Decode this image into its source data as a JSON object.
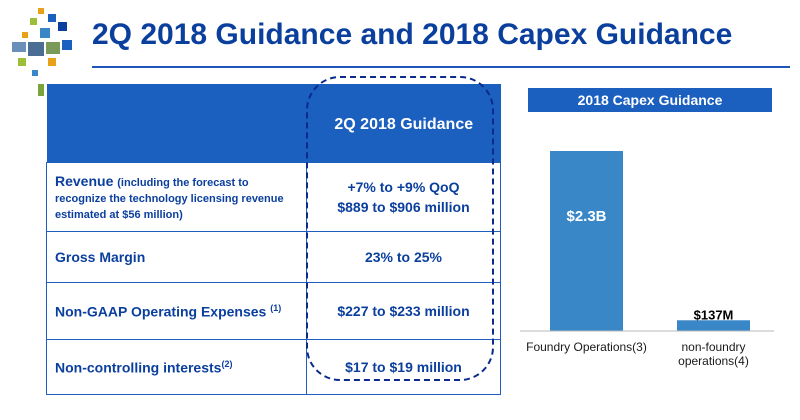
{
  "title": "2Q 2018 Guidance and 2018 Capex Guidance",
  "colors": {
    "accent": "#1b5fbf",
    "title": "#0b3f9e",
    "bar": "#3a87c8",
    "dashed_border": "#0b2a8a"
  },
  "guidance_table": {
    "header": {
      "label": "",
      "value": "2Q 2018 Guidance"
    },
    "rows": [
      {
        "label": "Revenue",
        "label_note": "(including the forecast to recognize the technology licensing revenue estimated at $56 million)",
        "value_line1": "+7% to +9% QoQ",
        "value_line2": "$889 to $906 million"
      },
      {
        "label": "Gross Margin",
        "value": "23% to 25%"
      },
      {
        "label": "Non-GAAP Operating Expenses",
        "footnote": "(1)",
        "value": "$227 to $233 million"
      },
      {
        "label": "Non-controlling interests",
        "footnote": "(2)",
        "value": "$17 to $19 million"
      }
    ]
  },
  "capex": {
    "title": "2018 Capex Guidance"
  },
  "chart_data": {
    "type": "bar",
    "title": "2018 Capex Guidance",
    "categories": [
      "Foundry Operations(3)",
      "non-foundry operations(4)"
    ],
    "category_lines": [
      [
        "Foundry Operations(3)"
      ],
      [
        "non-foundry",
        "operations(4)"
      ]
    ],
    "values": [
      2300,
      137
    ],
    "value_labels": [
      "$2.3B",
      "$137M"
    ],
    "unit": "$M",
    "ylim": [
      0,
      2300
    ],
    "grid": false
  }
}
